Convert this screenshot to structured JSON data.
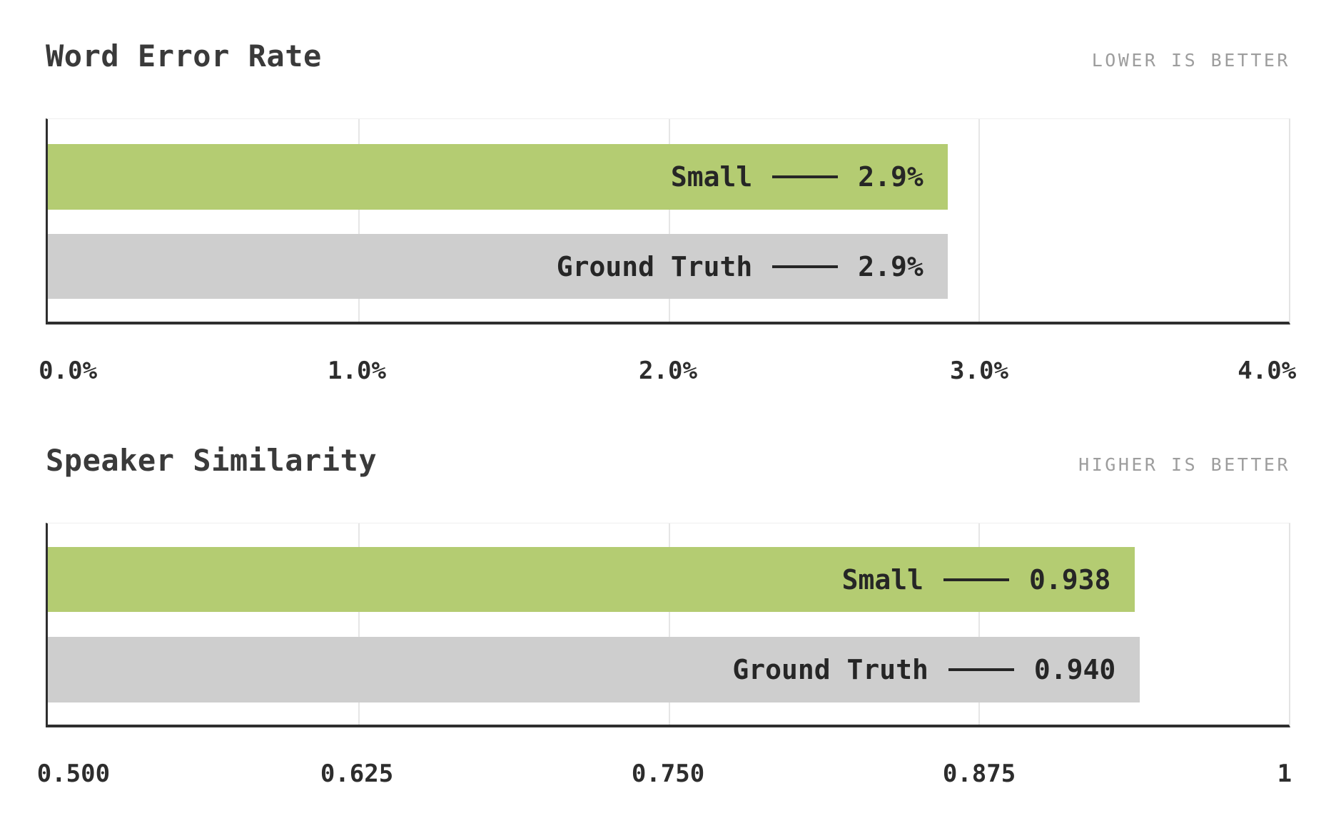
{
  "colors": {
    "accent_green": "#b4cc72",
    "neutral_gray": "#cecece",
    "axis": "#2e2e2e",
    "gridline": "#e6e6e6",
    "title_text": "#3a3a3a",
    "note_text": "#9d9d9d",
    "bar_text": "#262626"
  },
  "chart_data": [
    {
      "type": "bar",
      "orientation": "horizontal",
      "title": "Word Error Rate",
      "note": "LOWER IS BETTER",
      "categories": [
        "Small",
        "Ground Truth"
      ],
      "values": [
        2.9,
        2.9
      ],
      "value_labels": [
        "2.9%",
        "2.9%"
      ],
      "bar_colors": [
        "#b4cc72",
        "#cecece"
      ],
      "xlim": [
        0,
        4
      ],
      "xtick_values": [
        0,
        1,
        2,
        3,
        4
      ],
      "xticks": [
        "0.0%",
        "1.0%",
        "2.0%",
        "3.0%",
        "4.0%"
      ],
      "grid": true,
      "legend_position": "none"
    },
    {
      "type": "bar",
      "orientation": "horizontal",
      "title": "Speaker Similarity",
      "note": "HIGHER IS BETTER",
      "categories": [
        "Small",
        "Ground Truth"
      ],
      "values": [
        0.938,
        0.94
      ],
      "value_labels": [
        "0.938",
        "0.940"
      ],
      "bar_colors": [
        "#b4cc72",
        "#cecece"
      ],
      "xlim": [
        0.5,
        1
      ],
      "xtick_values": [
        0.5,
        0.625,
        0.75,
        0.875,
        1
      ],
      "xticks": [
        "0.500",
        "0.625",
        "0.750",
        "0.875",
        "1"
      ],
      "grid": true,
      "legend_position": "none"
    }
  ]
}
